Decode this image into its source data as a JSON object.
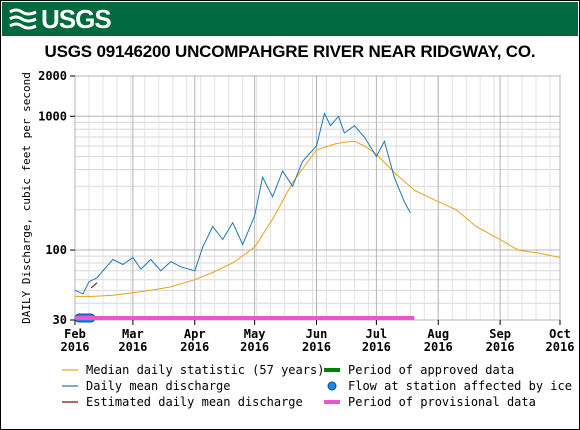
{
  "header": {
    "logo_text": "USGS",
    "colors": {
      "banner": "#00693e"
    }
  },
  "chart_data": {
    "type": "line",
    "title": "USGS 09146200 UNCOMPAHGRE RIVER NEAR RIDGWAY, CO.",
    "ylabel": "DAILY Discharge, cubic feet per second",
    "xlabel": "",
    "y_scale": "log",
    "ylim": [
      30,
      2000
    ],
    "xlim": [
      "2016-02-01",
      "2016-10-01"
    ],
    "y_ticks": [
      {
        "value": 30,
        "label": "30"
      },
      {
        "value": 100,
        "label": "100"
      },
      {
        "value": 1000,
        "label": "1000"
      },
      {
        "value": 2000,
        "label": "2000"
      }
    ],
    "x_ticks": [
      {
        "date": "2016-02-01",
        "month": "Feb",
        "year": "2016"
      },
      {
        "date": "2016-03-01",
        "month": "Mar",
        "year": "2016"
      },
      {
        "date": "2016-04-01",
        "month": "Apr",
        "year": "2016"
      },
      {
        "date": "2016-05-01",
        "month": "May",
        "year": "2016"
      },
      {
        "date": "2016-06-01",
        "month": "Jun",
        "year": "2016"
      },
      {
        "date": "2016-07-01",
        "month": "Jul",
        "year": "2016"
      },
      {
        "date": "2016-08-01",
        "month": "Aug",
        "year": "2016"
      },
      {
        "date": "2016-09-01",
        "month": "Sep",
        "year": "2016"
      },
      {
        "date": "2016-10-01",
        "month": "Oct",
        "year": "2016"
      }
    ],
    "grid": true,
    "series": [
      {
        "name": "Median daily statistic (57 years)",
        "color": "#e8a317",
        "style": "line",
        "x": [
          "2016-02-01",
          "2016-02-10",
          "2016-02-20",
          "2016-03-01",
          "2016-03-10",
          "2016-03-20",
          "2016-04-01",
          "2016-04-10",
          "2016-04-20",
          "2016-05-01",
          "2016-05-10",
          "2016-05-20",
          "2016-06-01",
          "2016-06-10",
          "2016-06-15",
          "2016-06-20",
          "2016-06-25",
          "2016-07-01",
          "2016-07-10",
          "2016-07-20",
          "2016-08-01",
          "2016-08-10",
          "2016-08-20",
          "2016-09-01",
          "2016-09-10",
          "2016-09-20",
          "2016-10-01"
        ],
        "y": [
          45,
          45,
          46,
          48,
          50,
          53,
          60,
          68,
          80,
          105,
          170,
          320,
          560,
          620,
          640,
          650,
          600,
          520,
          380,
          280,
          230,
          200,
          150,
          120,
          100,
          95,
          88
        ]
      },
      {
        "name": "Daily mean discharge",
        "color": "#1f77b4",
        "style": "line",
        "x": [
          "2016-02-01",
          "2016-02-05",
          "2016-02-08",
          "2016-02-12",
          "2016-02-15",
          "2016-02-20",
          "2016-02-25",
          "2016-03-01",
          "2016-03-05",
          "2016-03-10",
          "2016-03-15",
          "2016-03-20",
          "2016-03-25",
          "2016-04-01",
          "2016-04-05",
          "2016-04-10",
          "2016-04-15",
          "2016-04-20",
          "2016-04-25",
          "2016-05-01",
          "2016-05-05",
          "2016-05-10",
          "2016-05-15",
          "2016-05-20",
          "2016-05-25",
          "2016-06-01",
          "2016-06-05",
          "2016-06-08",
          "2016-06-12",
          "2016-06-15",
          "2016-06-20",
          "2016-06-25",
          "2016-07-01",
          "2016-07-05",
          "2016-07-10",
          "2016-07-15",
          "2016-07-18"
        ],
        "y": [
          50,
          47,
          58,
          62,
          70,
          85,
          78,
          88,
          72,
          85,
          70,
          82,
          75,
          70,
          105,
          150,
          120,
          160,
          110,
          180,
          350,
          250,
          390,
          300,
          460,
          600,
          1050,
          850,
          1000,
          750,
          850,
          700,
          500,
          650,
          350,
          230,
          190
        ]
      },
      {
        "name": "Estimated daily mean discharge",
        "color": "#8b0000",
        "style": "line",
        "x": [
          "2016-02-09",
          "2016-02-12"
        ],
        "y": [
          52,
          57
        ]
      },
      {
        "name": "Period of approved data",
        "color": "#008000",
        "style": "band",
        "x": [],
        "y": []
      },
      {
        "name": "Flow at station affected by ice",
        "color": "#1e88e5",
        "style": "marker",
        "x": [
          "2016-02-01",
          "2016-02-11"
        ],
        "y": [
          30,
          30
        ]
      },
      {
        "name": "Period of provisional data",
        "color": "#ee55cc",
        "style": "band",
        "x": [
          "2016-02-01",
          "2016-07-20"
        ],
        "y": [
          30,
          30
        ]
      }
    ]
  }
}
